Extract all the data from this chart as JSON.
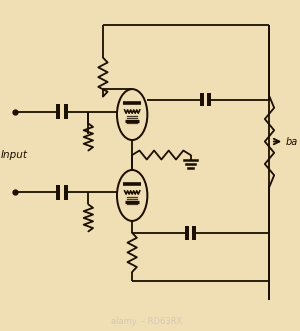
{
  "bg_color": "#f0deb4",
  "line_color": "#1a0f00",
  "text_color": "#1a0f00",
  "lw": 1.3,
  "figsize": [
    3.0,
    3.31
  ],
  "dpi": 100,
  "watermark_text": "alamy  - RD63RX",
  "input_label": "Input",
  "ba_label": "ba",
  "xlim": [
    0,
    10
  ],
  "ylim": [
    0,
    11
  ]
}
